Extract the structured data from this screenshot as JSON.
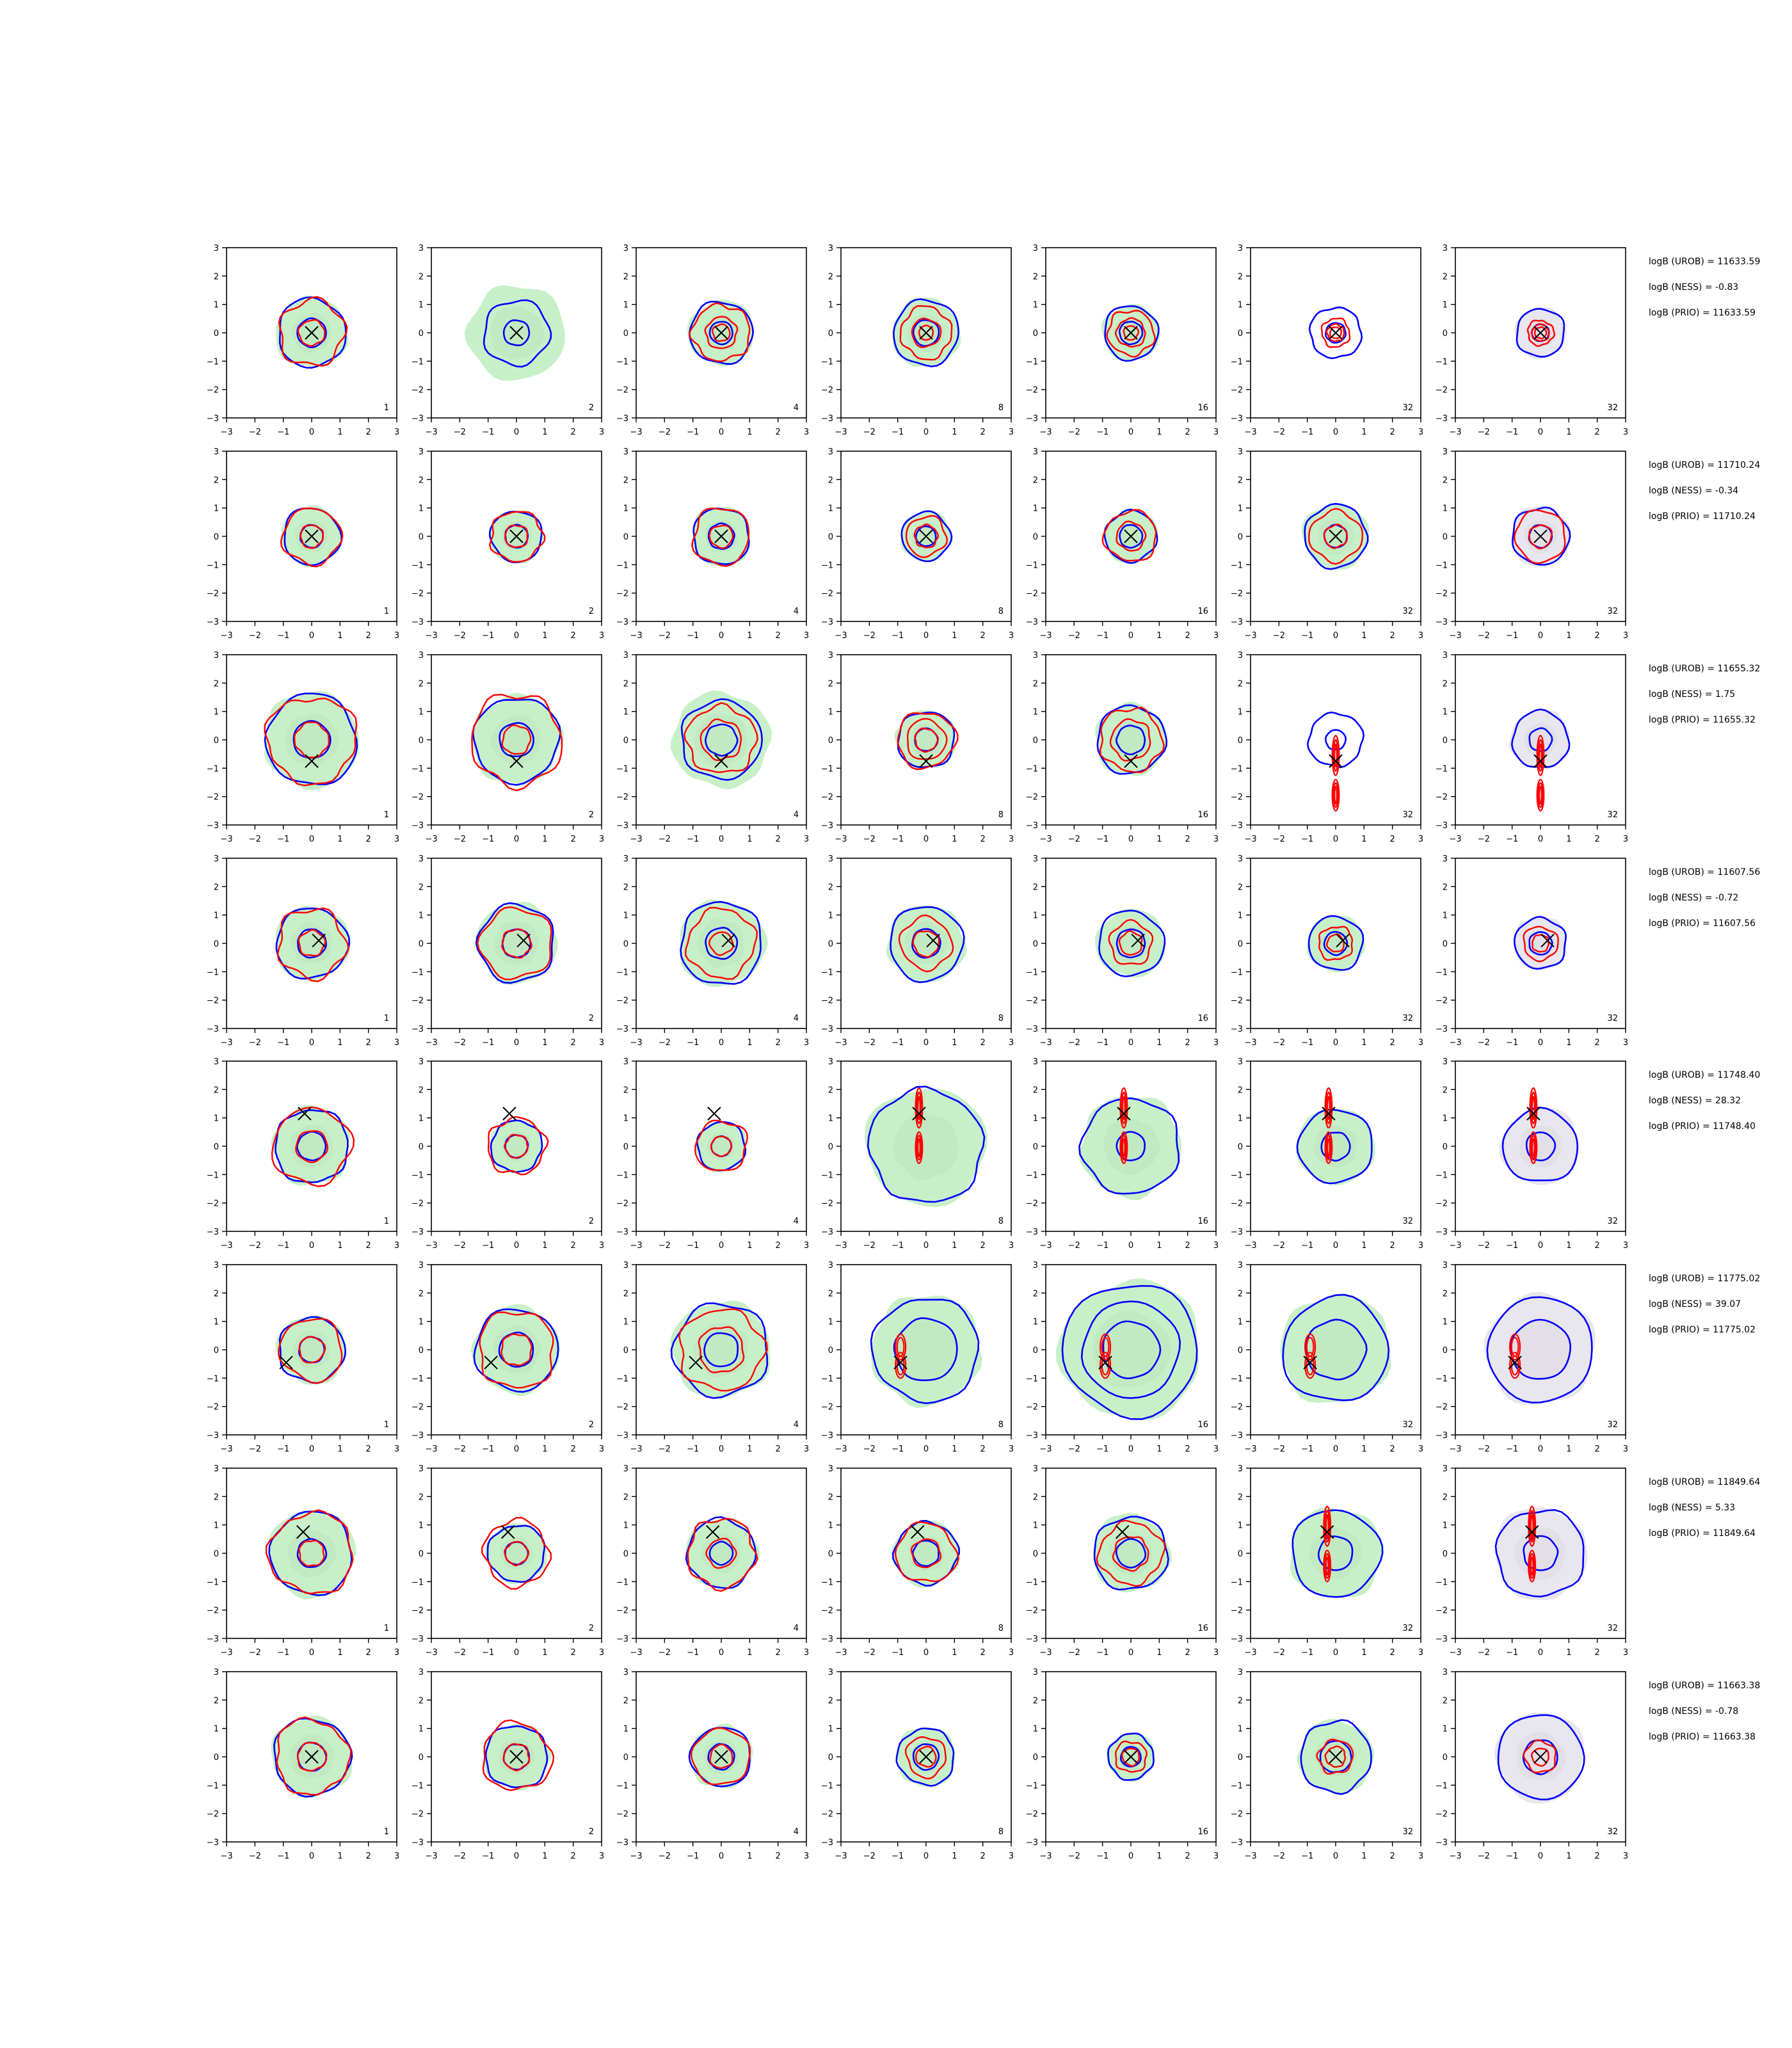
{
  "chart_data": {
    "type": "contour",
    "grid": false,
    "xlim": [
      -3,
      3
    ],
    "ylim": [
      -3,
      3
    ],
    "ticks": [
      "−3",
      "−2",
      "−1",
      "0",
      "1",
      "2",
      "3"
    ],
    "tick_values": [
      -3,
      -2,
      -1,
      0,
      1,
      2,
      3
    ],
    "colors": {
      "blue_contour": "#0000ff",
      "red_contour": "#ff0000",
      "green_fill": "#c8f0c8",
      "grey_fill": "#e8e6ee",
      "marker": "#000000"
    },
    "column_labels": [
      "1",
      "2",
      "4",
      "8",
      "16",
      "32",
      "32"
    ],
    "rows": [
      {
        "marker": [
          0.0,
          0.0
        ],
        "annotations": [
          "logB (UROB) = 11633.59",
          "logB (NESS) = -0.83",
          "logB (PRIO) = 11633.59"
        ],
        "panels": [
          {
            "fill": "green",
            "blue": [
              1.2,
              0.5
            ],
            "red": [
              1.15,
              0.45
            ]
          },
          {
            "fill": "green",
            "fill_r": 1.7,
            "blue": [
              1.15,
              0.45
            ],
            "red": []
          },
          {
            "fill": "green",
            "blue": [
              1.1,
              0.4
            ],
            "red": [
              1.0,
              0.55,
              0.3
            ]
          },
          {
            "fill": "green",
            "blue": [
              1.15,
              0.45
            ],
            "red": [
              0.9,
              0.5,
              0.25
            ]
          },
          {
            "fill": "green",
            "blue": [
              0.95,
              0.4
            ],
            "red": [
              0.8,
              0.5,
              0.25
            ]
          },
          {
            "fill": "none",
            "blue": [
              0.9,
              0.35
            ],
            "red": [
              0.5,
              0.3,
              0.2
            ]
          },
          {
            "fill": "grey",
            "blue": [
              0.85,
              0.3
            ],
            "red": [
              0.45,
              0.3,
              0.2
            ]
          }
        ]
      },
      {
        "marker": [
          0.0,
          0.0
        ],
        "annotations": [
          "logB (UROB) = 11710.24",
          "logB (NESS) = -0.34",
          "logB (PRIO) = 11710.24"
        ],
        "panels": [
          {
            "fill": "green",
            "blue": [
              1.0,
              0.4
            ],
            "red": [
              1.0,
              0.4
            ]
          },
          {
            "fill": "green",
            "blue": [
              0.9,
              0.4
            ],
            "red": [
              0.9,
              0.4
            ]
          },
          {
            "fill": "green",
            "blue": [
              1.0,
              0.45
            ],
            "red": [
              1.0,
              0.4
            ]
          },
          {
            "fill": "green",
            "blue": [
              0.85,
              0.35
            ],
            "red": [
              0.7,
              0.4
            ]
          },
          {
            "fill": "green",
            "blue": [
              0.9,
              0.4
            ],
            "red": [
              0.9,
              0.5
            ]
          },
          {
            "fill": "green",
            "blue": [
              1.1,
              0.4
            ],
            "red": [
              0.9,
              0.4
            ]
          },
          {
            "fill": "grey",
            "blue": [
              1.0,
              0.4
            ],
            "red": [
              0.9,
              0.4
            ]
          }
        ]
      },
      {
        "marker": [
          0.0,
          -0.75
        ],
        "annotations": [
          "logB (UROB) = 11655.32",
          "logB (NESS) = 1.75",
          "logB (PRIO) = 11655.32"
        ],
        "panels": [
          {
            "fill": "green",
            "blue": [
              1.6,
              0.65
            ],
            "red": [
              1.55,
              0.6
            ]
          },
          {
            "fill": "green",
            "blue": [
              1.5,
              0.6
            ],
            "red": [
              1.6,
              0.5
            ]
          },
          {
            "fill": "green",
            "fill_r": 1.7,
            "blue": [
              1.4,
              0.55
            ],
            "red": [
              1.2,
              0.7
            ]
          },
          {
            "fill": "green",
            "blue": [
              1.0,
              0.4
            ],
            "red": [
              1.0,
              0.7,
              0.4
            ]
          },
          {
            "fill": "green",
            "blue": [
              1.2,
              0.5
            ],
            "red": [
              1.1,
              0.7
            ]
          },
          {
            "fill": "none",
            "blue": [
              0.95,
              0.35
            ],
            "red": [],
            "red_vertical": true
          },
          {
            "fill": "grey",
            "blue": [
              1.0,
              0.4
            ],
            "red": [],
            "red_vertical": true
          }
        ]
      },
      {
        "marker": [
          0.25,
          0.1
        ],
        "annotations": [
          "logB (UROB) = 11607.56",
          "logB (NESS) = -0.72",
          "logB (PRIO) = 11607.56"
        ],
        "panels": [
          {
            "fill": "green",
            "blue": [
              1.25,
              0.5
            ],
            "red": [
              1.2,
              0.45
            ]
          },
          {
            "fill": "green",
            "blue": [
              1.35,
              0.5
            ],
            "red": [
              1.25,
              0.5
            ]
          },
          {
            "fill": "green",
            "blue": [
              1.45,
              0.55
            ],
            "red": [
              1.2,
              0.4
            ]
          },
          {
            "fill": "green",
            "blue": [
              1.3,
              0.5
            ],
            "red": [
              0.9,
              0.45
            ]
          },
          {
            "fill": "green",
            "blue": [
              1.15,
              0.5
            ],
            "red": [
              0.75,
              0.4
            ]
          },
          {
            "fill": "green",
            "blue": [
              0.95,
              0.4
            ],
            "red": [
              0.6,
              0.3
            ]
          },
          {
            "fill": "grey",
            "blue": [
              0.9,
              0.4
            ],
            "red": [
              0.6,
              0.3
            ]
          }
        ]
      },
      {
        "marker": [
          -0.25,
          1.15
        ],
        "annotations": [
          "logB (UROB) = 11748.40",
          "logB (NESS) = 28.32",
          "logB (PRIO) = 11748.40"
        ],
        "panels": [
          {
            "fill": "green",
            "blue": [
              1.3,
              0.5
            ],
            "red": [
              1.35,
              0.55
            ]
          },
          {
            "fill": "green",
            "blue": [
              0.9,
              0.4
            ],
            "red": [
              1.0,
              0.4
            ]
          },
          {
            "fill": "green",
            "blue": [
              0.85,
              0.35
            ],
            "red": [
              0.9,
              0.35
            ]
          },
          {
            "fill": "green",
            "blue": [
              2.0
            ],
            "red": [],
            "red_vertical": true
          },
          {
            "fill": "green",
            "blue": [
              1.7,
              0.5
            ],
            "red": [],
            "red_vertical": true
          },
          {
            "fill": "green",
            "blue": [
              1.3,
              0.5
            ],
            "red": [],
            "red_vertical": true
          },
          {
            "fill": "grey",
            "blue": [
              1.3,
              0.5
            ],
            "red": [],
            "red_vertical": true
          }
        ]
      },
      {
        "marker": [
          -0.9,
          -0.45
        ],
        "annotations": [
          "logB (UROB) = 11775.02",
          "logB (NESS) = 39.07",
          "logB (PRIO) = 11775.02"
        ],
        "panels": [
          {
            "fill": "green",
            "blue": [
              1.15,
              0.45
            ],
            "red": [
              1.1,
              0.45
            ]
          },
          {
            "fill": "green",
            "blue": [
              1.45,
              0.6
            ],
            "red": [
              1.35,
              0.55
            ]
          },
          {
            "fill": "green",
            "blue": [
              1.65,
              0.6
            ],
            "red": [
              1.45,
              0.8
            ]
          },
          {
            "fill": "green",
            "blue": [
              1.85,
              1.1
            ],
            "red": [],
            "red_side": true
          },
          {
            "fill": "green",
            "blue": [
              2.35,
              1.7,
              1.0
            ],
            "red": [],
            "red_side": true
          },
          {
            "fill": "green",
            "blue": [
              1.85,
              1.05
            ],
            "red": [],
            "red_side": true
          },
          {
            "fill": "grey",
            "blue": [
              1.85,
              1.05
            ],
            "red": [],
            "red_side": true
          }
        ]
      },
      {
        "marker": [
          -0.3,
          0.75
        ],
        "annotations": [
          "logB (UROB) = 11849.64",
          "logB (NESS) = 5.33",
          "logB (PRIO) = 11849.64"
        ],
        "panels": [
          {
            "fill": "green",
            "blue": [
              1.45,
              0.5
            ],
            "red": [
              1.45,
              0.45
            ]
          },
          {
            "fill": "green",
            "blue": [
              1.0,
              0.4
            ],
            "red": [
              1.15,
              0.4
            ]
          },
          {
            "fill": "green",
            "blue": [
              1.2,
              0.4
            ],
            "red": [
              1.2,
              0.5
            ]
          },
          {
            "fill": "green",
            "blue": [
              1.1,
              0.45
            ],
            "red": [
              1.05,
              0.5
            ]
          },
          {
            "fill": "green",
            "blue": [
              1.3,
              0.5
            ],
            "red": [
              1.1,
              0.6
            ]
          },
          {
            "fill": "green",
            "blue": [
              1.55,
              0.6
            ],
            "red": [],
            "red_vertical": true
          },
          {
            "fill": "grey",
            "blue": [
              1.55,
              0.6
            ],
            "red": [],
            "red_vertical": true
          }
        ]
      },
      {
        "marker": [
          0.0,
          0.0
        ],
        "annotations": [
          "logB (UROB) = 11663.38",
          "logB (NESS) = -0.78",
          "logB (PRIO) = 11663.38"
        ],
        "panels": [
          {
            "fill": "green",
            "blue": [
              1.35,
              0.5
            ],
            "red": [
              1.3,
              0.5
            ]
          },
          {
            "fill": "green",
            "blue": [
              1.1,
              0.45
            ],
            "red": [
              1.2,
              0.45
            ]
          },
          {
            "fill": "green",
            "blue": [
              1.05,
              0.45
            ],
            "red": [
              1.0,
              0.4
            ]
          },
          {
            "fill": "green",
            "blue": [
              1.0,
              0.45
            ],
            "red": [
              0.7,
              0.35
            ]
          },
          {
            "fill": "green",
            "blue": [
              0.8,
              0.35
            ],
            "red": [
              0.55,
              0.3
            ]
          },
          {
            "fill": "green",
            "blue": [
              1.25,
              0.55
            ],
            "red": [
              0.6,
              0.35
            ]
          },
          {
            "fill": "grey",
            "blue": [
              1.5,
              0.6
            ],
            "red": [
              0.55,
              0.3
            ]
          }
        ]
      }
    ]
  }
}
